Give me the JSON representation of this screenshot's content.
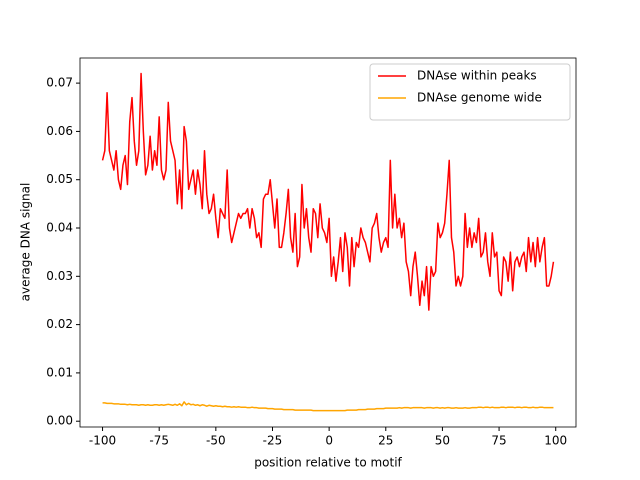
{
  "chart_data": {
    "type": "line",
    "xlabel": "position relative to motif",
    "ylabel": "average DNA signal",
    "x": [
      -100,
      -99,
      -98,
      -97,
      -96,
      -95,
      -94,
      -93,
      -92,
      -91,
      -90,
      -89,
      -88,
      -87,
      -86,
      -85,
      -84,
      -83,
      -82,
      -81,
      -80,
      -79,
      -78,
      -77,
      -76,
      -75,
      -74,
      -73,
      -72,
      -71,
      -70,
      -69,
      -68,
      -67,
      -66,
      -65,
      -64,
      -63,
      -62,
      -61,
      -60,
      -59,
      -58,
      -57,
      -56,
      -55,
      -54,
      -53,
      -52,
      -51,
      -50,
      -49,
      -48,
      -47,
      -46,
      -45,
      -44,
      -43,
      -42,
      -41,
      -40,
      -39,
      -38,
      -37,
      -36,
      -35,
      -34,
      -33,
      -32,
      -31,
      -30,
      -29,
      -28,
      -27,
      -26,
      -25,
      -24,
      -23,
      -22,
      -21,
      -20,
      -19,
      -18,
      -17,
      -16,
      -15,
      -14,
      -13,
      -12,
      -11,
      -10,
      -9,
      -8,
      -7,
      -6,
      -5,
      -4,
      -3,
      -2,
      -1,
      0,
      1,
      2,
      3,
      4,
      5,
      6,
      7,
      8,
      9,
      10,
      11,
      12,
      13,
      14,
      15,
      16,
      17,
      18,
      19,
      20,
      21,
      22,
      23,
      24,
      25,
      26,
      27,
      28,
      29,
      30,
      31,
      32,
      33,
      34,
      35,
      36,
      37,
      38,
      39,
      40,
      41,
      42,
      43,
      44,
      45,
      46,
      47,
      48,
      49,
      50,
      51,
      52,
      53,
      54,
      55,
      56,
      57,
      58,
      59,
      60,
      61,
      62,
      63,
      64,
      65,
      66,
      67,
      68,
      69,
      70,
      71,
      72,
      73,
      74,
      75,
      76,
      77,
      78,
      79,
      80,
      81,
      82,
      83,
      84,
      85,
      86,
      87,
      88,
      89,
      90,
      91,
      92,
      93,
      94,
      95,
      96,
      97,
      98,
      99
    ],
    "series": [
      {
        "name": "DNAse within peaks",
        "color": "#ff0000",
        "values": [
          0.054,
          0.056,
          0.068,
          0.056,
          0.054,
          0.052,
          0.056,
          0.05,
          0.048,
          0.053,
          0.055,
          0.049,
          0.062,
          0.067,
          0.058,
          0.053,
          0.056,
          0.072,
          0.06,
          0.051,
          0.053,
          0.059,
          0.052,
          0.056,
          0.053,
          0.063,
          0.052,
          0.05,
          0.052,
          0.066,
          0.058,
          0.056,
          0.054,
          0.045,
          0.052,
          0.044,
          0.061,
          0.058,
          0.048,
          0.05,
          0.052,
          0.047,
          0.052,
          0.049,
          0.044,
          0.056,
          0.047,
          0.043,
          0.044,
          0.047,
          0.042,
          0.038,
          0.044,
          0.043,
          0.042,
          0.052,
          0.04,
          0.037,
          0.039,
          0.041,
          0.043,
          0.042,
          0.043,
          0.043,
          0.044,
          0.04,
          0.044,
          0.042,
          0.038,
          0.039,
          0.036,
          0.046,
          0.047,
          0.047,
          0.05,
          0.045,
          0.04,
          0.046,
          0.036,
          0.036,
          0.039,
          0.043,
          0.048,
          0.038,
          0.035,
          0.043,
          0.032,
          0.034,
          0.049,
          0.04,
          0.044,
          0.038,
          0.035,
          0.044,
          0.043,
          0.038,
          0.045,
          0.04,
          0.039,
          0.037,
          0.042,
          0.03,
          0.034,
          0.029,
          0.033,
          0.038,
          0.031,
          0.039,
          0.036,
          0.028,
          0.038,
          0.032,
          0.037,
          0.036,
          0.04,
          0.038,
          0.037,
          0.035,
          0.033,
          0.04,
          0.041,
          0.043,
          0.038,
          0.035,
          0.037,
          0.038,
          0.036,
          0.054,
          0.04,
          0.047,
          0.04,
          0.042,
          0.038,
          0.041,
          0.033,
          0.031,
          0.026,
          0.032,
          0.035,
          0.03,
          0.024,
          0.029,
          0.026,
          0.032,
          0.023,
          0.032,
          0.03,
          0.031,
          0.041,
          0.038,
          0.039,
          0.041,
          0.047,
          0.054,
          0.038,
          0.035,
          0.028,
          0.03,
          0.028,
          0.03,
          0.043,
          0.036,
          0.04,
          0.036,
          0.039,
          0.037,
          0.042,
          0.034,
          0.035,
          0.039,
          0.033,
          0.03,
          0.039,
          0.034,
          0.035,
          0.027,
          0.026,
          0.034,
          0.033,
          0.029,
          0.035,
          0.027,
          0.033,
          0.034,
          0.032,
          0.034,
          0.035,
          0.031,
          0.038,
          0.033,
          0.037,
          0.032,
          0.038,
          0.033,
          0.036,
          0.038,
          0.028,
          0.028,
          0.03,
          0.033
        ]
      },
      {
        "name": "DNAse genome wide",
        "color": "#ffa500",
        "values": [
          0.0038,
          0.0038,
          0.0037,
          0.0037,
          0.0037,
          0.0036,
          0.0036,
          0.0036,
          0.0035,
          0.0035,
          0.0035,
          0.0034,
          0.0035,
          0.0034,
          0.0034,
          0.0034,
          0.0033,
          0.0034,
          0.0034,
          0.0033,
          0.0034,
          0.0033,
          0.0033,
          0.0034,
          0.0034,
          0.0033,
          0.0034,
          0.0033,
          0.0034,
          0.0035,
          0.0034,
          0.0033,
          0.0035,
          0.0033,
          0.0036,
          0.0032,
          0.004,
          0.0034,
          0.0037,
          0.0034,
          0.0035,
          0.0033,
          0.0034,
          0.0032,
          0.0034,
          0.0033,
          0.0031,
          0.0033,
          0.0032,
          0.0031,
          0.0032,
          0.0031,
          0.0031,
          0.003,
          0.0031,
          0.003,
          0.003,
          0.0029,
          0.003,
          0.0029,
          0.003,
          0.0029,
          0.0029,
          0.0029,
          0.0028,
          0.0028,
          0.0029,
          0.0028,
          0.0028,
          0.0027,
          0.0027,
          0.0027,
          0.0027,
          0.0026,
          0.0026,
          0.0026,
          0.0025,
          0.0025,
          0.0025,
          0.0025,
          0.0024,
          0.0024,
          0.0024,
          0.0024,
          0.0024,
          0.0023,
          0.0023,
          0.0023,
          0.0023,
          0.0023,
          0.0023,
          0.0023,
          0.0023,
          0.0022,
          0.0022,
          0.0022,
          0.0022,
          0.0022,
          0.0022,
          0.0022,
          0.0022,
          0.0022,
          0.0022,
          0.0022,
          0.0022,
          0.0022,
          0.0022,
          0.0022,
          0.0023,
          0.0023,
          0.0023,
          0.0023,
          0.0023,
          0.0024,
          0.0024,
          0.0024,
          0.0024,
          0.0025,
          0.0025,
          0.0025,
          0.0025,
          0.0026,
          0.0026,
          0.0026,
          0.0026,
          0.0027,
          0.0027,
          0.0027,
          0.0027,
          0.0027,
          0.0027,
          0.0028,
          0.0027,
          0.0028,
          0.0028,
          0.0028,
          0.0027,
          0.0028,
          0.0028,
          0.0028,
          0.0028,
          0.0028,
          0.0027,
          0.0028,
          0.0028,
          0.0028,
          0.0027,
          0.0028,
          0.0028,
          0.0027,
          0.0028,
          0.0027,
          0.0028,
          0.0028,
          0.0027,
          0.0027,
          0.0028,
          0.0027,
          0.0027,
          0.0027,
          0.0028,
          0.0027,
          0.0027,
          0.0028,
          0.0028,
          0.0028,
          0.0029,
          0.0029,
          0.0028,
          0.0029,
          0.0029,
          0.0028,
          0.0029,
          0.0028,
          0.0028,
          0.0028,
          0.0029,
          0.0029,
          0.0028,
          0.0029,
          0.0029,
          0.0029,
          0.0028,
          0.0029,
          0.0029,
          0.0028,
          0.0029,
          0.0029,
          0.0028,
          0.0028,
          0.0029,
          0.0028,
          0.0028,
          0.0029,
          0.0029,
          0.0028,
          0.0028,
          0.0028,
          0.0028,
          0.0028
        ]
      }
    ],
    "xlim": [
      -109.95,
      108.95
    ],
    "ylim": [
      -0.0012,
      0.0752
    ],
    "xticks": [
      -100,
      -75,
      -50,
      -25,
      0,
      25,
      50,
      75,
      100
    ],
    "yticks": [
      {
        "value": 0,
        "label": "0.00"
      },
      {
        "value": 0.01,
        "label": "0.01"
      },
      {
        "value": 0.02,
        "label": "0.02"
      },
      {
        "value": 0.03,
        "label": "0.03"
      },
      {
        "value": 0.04,
        "label": "0.04"
      },
      {
        "value": 0.05,
        "label": "0.05"
      },
      {
        "value": 0.06,
        "label": "0.06"
      },
      {
        "value": 0.07,
        "label": "0.07"
      }
    ],
    "grid": false,
    "legend": "upper right"
  }
}
